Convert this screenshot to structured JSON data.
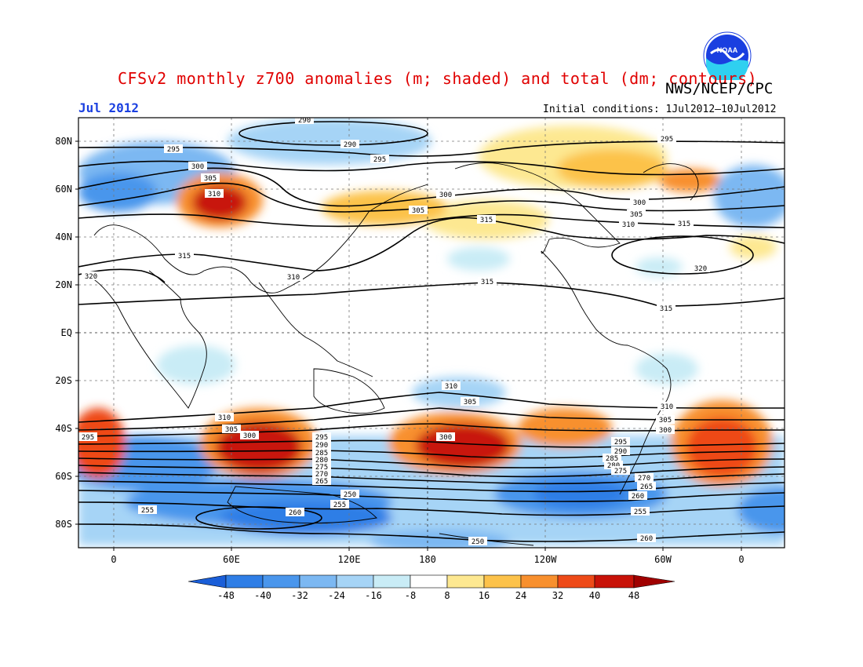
{
  "title": "CFSv2 monthly z700 anomalies (m; shaded) and total (dm; contours)",
  "agency": "NWS/NCEP/CPC",
  "logo_text": "NOAA",
  "month": "Jul 2012",
  "initial_conditions": "Initial conditions: 1Jul2012–10Jul2012",
  "lat_labels": [
    "80N",
    "60N",
    "40N",
    "20N",
    "EQ",
    "20S",
    "40S",
    "60S",
    "80S"
  ],
  "lon_labels": [
    "0",
    "60E",
    "120E",
    "180",
    "120W",
    "60W",
    "0"
  ],
  "colorbar": {
    "labels": [
      "-48",
      "-40",
      "-32",
      "-24",
      "-16",
      "-8",
      "8",
      "16",
      "24",
      "32",
      "40",
      "48"
    ],
    "colors": [
      "#1a5ed8",
      "#2f7ee6",
      "#4a96ec",
      "#7cb8f2",
      "#a6d4f6",
      "#c9ecf6",
      "#ffffff",
      "#fde891",
      "#fcc24a",
      "#f8902e",
      "#ee4a18",
      "#c81208",
      "#a00000"
    ]
  },
  "chart_data": {
    "type": "heatmap",
    "variable": "z700 anomalies (m; shaded) and total (dm; contours)",
    "contour_labels": [
      "290",
      "295",
      "300",
      "305",
      "310",
      "315",
      "320",
      "250",
      "255",
      "260",
      "265",
      "270",
      "275",
      "280",
      "285"
    ],
    "anomaly_levels": [
      -48,
      -40,
      -32,
      -24,
      -16,
      -8,
      8,
      16,
      24,
      32,
      40,
      48
    ]
  }
}
